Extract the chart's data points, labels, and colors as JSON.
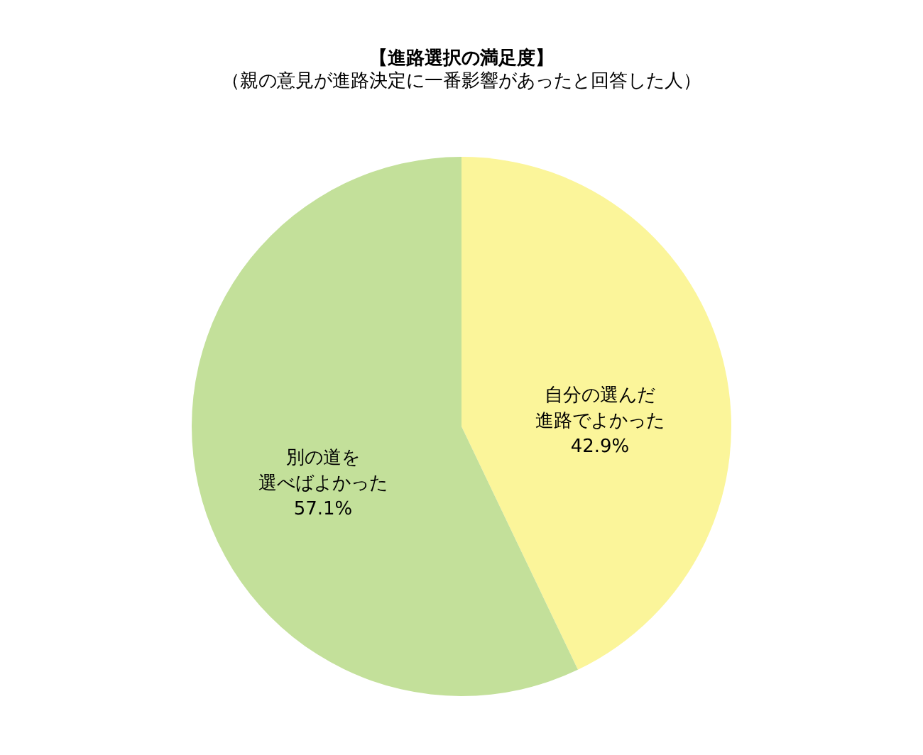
{
  "chart_data": {
    "type": "pie",
    "title": "【進路選択の満足度】",
    "subtitle": "（親の意見が進路決定に一番影響があったと回答した人）",
    "categories": [
      "自分の選んだ進路でよかった",
      "別の道を選べばよかった"
    ],
    "values": [
      42.9,
      57.1
    ],
    "value_labels": [
      "42.9%",
      "57.1%"
    ],
    "colors": [
      "#fbf59a",
      "#c3e09a"
    ],
    "legend": false
  }
}
